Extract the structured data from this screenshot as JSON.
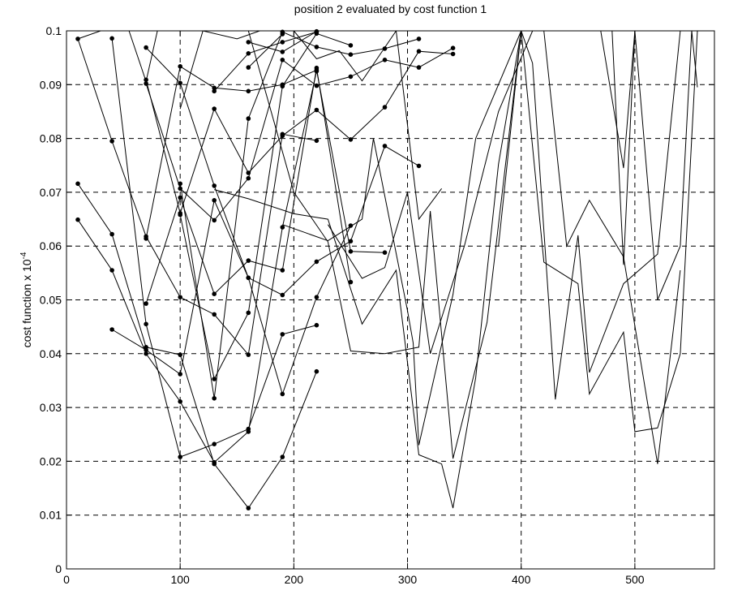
{
  "chart_data": {
    "type": "line",
    "title": "position 2 evaluated by cost function 1",
    "xlabel": "",
    "ylabel": "cost function x 10",
    "ylabel_exponent": "-4",
    "xlim": [
      0,
      570
    ],
    "ylim": [
      0,
      0.1
    ],
    "x_ticks": [
      "0",
      "100",
      "200",
      "300",
      "400",
      "500"
    ],
    "y_ticks": [
      "0",
      "0.01",
      "0.02",
      "0.03",
      "0.04",
      "0.05",
      "0.06",
      "0.07",
      "0.08",
      "0.09",
      "0.1"
    ],
    "grid": true,
    "marker_series": [
      {
        "x": [
          10,
          40,
          70,
          100,
          130,
          160,
          190,
          220
        ],
        "y": [
          0.0985,
          0.0795,
          0.0618,
          0.0505,
          0.0473,
          0.0398,
          0.0808,
          0.0796
        ]
      },
      {
        "x": [
          10,
          40,
          70,
          100,
          130,
          160,
          190,
          220
        ],
        "y": [
          0.0716,
          0.0622,
          0.0412,
          0.0398,
          0.0195,
          0.0113,
          0.0208,
          0.0367
        ]
      },
      {
        "x": [
          10,
          40,
          70,
          100,
          130,
          160,
          190,
          220
        ],
        "y": [
          0.0649,
          0.0555,
          0.04,
          0.0311,
          0.0198,
          0.0255,
          0.0635,
          0.0925
        ]
      },
      {
        "x": [
          40,
          70,
          100,
          130,
          160,
          190,
          220
        ],
        "y": [
          0.0986,
          0.0455,
          0.0208,
          0.0232,
          0.026,
          0.0436,
          0.0453
        ]
      },
      {
        "x": [
          40,
          70,
          100,
          130,
          160,
          190,
          220,
          250
        ],
        "y": [
          0.0445,
          0.0407,
          0.0362,
          0.0685,
          0.0541,
          0.0325,
          0.0505,
          0.0638
        ]
      },
      {
        "x": [
          70,
          100,
          130,
          160,
          190,
          220,
          250,
          280,
          310
        ],
        "y": [
          0.0969,
          0.0903,
          0.0712,
          0.0541,
          0.0509,
          0.0571,
          0.0609,
          0.0786,
          0.0749
        ]
      },
      {
        "x": [
          70,
          100,
          130,
          160,
          190,
          220,
          250,
          280,
          310,
          340
        ],
        "y": [
          0.0909,
          0.0661,
          0.0855,
          0.0736,
          0.0805,
          0.0853,
          0.0798,
          0.0858,
          0.0962,
          0.0957
        ]
      },
      {
        "x": [
          70,
          100,
          130,
          160,
          190,
          220,
          250,
          280,
          310,
          340
        ],
        "y": [
          0.0902,
          0.0707,
          0.0648,
          0.0726,
          0.0946,
          0.0898,
          0.0915,
          0.0946,
          0.0932,
          0.0968
        ]
      },
      {
        "x": [
          70,
          100,
          130,
          160,
          190,
          220,
          250,
          280
        ],
        "y": [
          0.0614,
          0.0934,
          0.0894,
          0.0888,
          0.09,
          0.0927,
          0.059,
          0.0588
        ]
      },
      {
        "x": [
          70,
          100,
          130,
          160,
          190,
          220,
          250
        ],
        "y": [
          0.0493,
          0.069,
          0.0511,
          0.0573,
          0.0555,
          0.0931,
          0.0533
        ]
      },
      {
        "x": [
          100,
          130,
          160,
          190,
          220,
          250,
          280,
          310
        ],
        "y": [
          0.0716,
          0.0317,
          0.0837,
          0.0998,
          0.097,
          0.0956,
          0.0967,
          0.0985
        ]
      },
      {
        "x": [
          100,
          130,
          160,
          190,
          220,
          250
        ],
        "y": [
          0.0658,
          0.0353,
          0.0476,
          0.0897,
          0.0995,
          0.0973
        ]
      },
      {
        "x": [
          130,
          160,
          190,
          220
        ],
        "y": [
          0.0888,
          0.0958,
          0.0979,
          0.0998
        ]
      },
      {
        "x": [
          160,
          190,
          220
        ],
        "y": [
          0.0979,
          0.0961,
          0.0999
        ]
      },
      {
        "x": [
          160,
          190
        ],
        "y": [
          0.0932,
          0.0994
        ]
      }
    ],
    "line_series": [
      {
        "x": [
          10,
          30,
          55,
          70,
          80
        ],
        "y": [
          0.0985,
          0.1,
          0.1,
          0.0906,
          0.1
        ]
      },
      {
        "x": [
          100,
          120,
          150,
          170,
          200,
          220,
          240,
          260,
          290,
          310,
          330
        ],
        "y": [
          0.0855,
          0.1,
          0.0985,
          0.1,
          0.1,
          0.0948,
          0.0963,
          0.0907,
          0.1,
          0.065,
          0.0707
        ]
      },
      {
        "x": [
          130,
          160,
          200,
          230,
          260,
          290,
          310,
          330,
          340,
          360,
          380,
          400
        ],
        "y": [
          0.0705,
          0.0688,
          0.066,
          0.065,
          0.0455,
          0.0555,
          0.0212,
          0.0195,
          0.0113,
          0.0355,
          0.0752,
          0.1
        ]
      },
      {
        "x": [
          160,
          200,
          230,
          250,
          280,
          310,
          320,
          340,
          370,
          400
        ],
        "y": [
          0.1,
          0.07,
          0.0608,
          0.0405,
          0.04,
          0.0412,
          0.0665,
          0.0205,
          0.0458,
          0.1
        ]
      },
      {
        "x": [
          190,
          230,
          260,
          270,
          300,
          305,
          310,
          340,
          360,
          400
        ],
        "y": [
          0.064,
          0.061,
          0.065,
          0.08,
          0.048,
          0.042,
          0.023,
          0.051,
          0.08,
          0.1
        ]
      },
      {
        "x": [
          230,
          260,
          280,
          300,
          320,
          350,
          380,
          410
        ],
        "y": [
          0.064,
          0.054,
          0.056,
          0.07,
          0.04,
          0.06,
          0.085,
          0.1
        ]
      },
      {
        "x": [
          380,
          400,
          410,
          430,
          450,
          460,
          490,
          520,
          540,
          555
        ],
        "y": [
          0.06,
          0.1,
          0.094,
          0.0315,
          0.062,
          0.0365,
          0.053,
          0.0585,
          0.1,
          0.1
        ]
      },
      {
        "x": [
          400,
          420,
          450,
          460,
          490,
          500,
          520,
          540,
          555
        ],
        "y": [
          0.1,
          0.057,
          0.053,
          0.0325,
          0.044,
          0.0255,
          0.0262,
          0.04,
          0.1
        ]
      },
      {
        "x": [
          420,
          440,
          460,
          490,
          520,
          540
        ],
        "y": [
          0.1,
          0.06,
          0.0685,
          0.058,
          0.0195,
          0.0555
        ]
      },
      {
        "x": [
          470,
          490,
          500,
          520,
          540,
          550,
          555
        ],
        "y": [
          0.1,
          0.0745,
          0.1,
          0.05,
          0.06,
          0.1,
          0.0895
        ]
      },
      {
        "x": [
          480,
          490,
          500,
          510
        ],
        "y": [
          0.1,
          0.0565,
          0.1,
          0.1
        ]
      }
    ]
  }
}
